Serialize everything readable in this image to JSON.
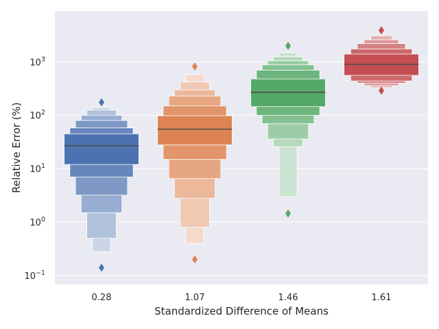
{
  "chart_data": {
    "type": "boxenplot",
    "xlabel": "Standardized Difference of Means",
    "ylabel": "Relative Error (%)",
    "yscale": "log",
    "ylim": [
      0.068,
      9000
    ],
    "grid": true,
    "categories": [
      "0.28",
      "1.07",
      "1.46",
      "1.61"
    ],
    "yticks": [
      {
        "value": 0.1,
        "base": "10",
        "exp": "−1"
      },
      {
        "value": 1,
        "base": "10",
        "exp": "0"
      },
      {
        "value": 10,
        "base": "10",
        "exp": "1"
      },
      {
        "value": 100,
        "base": "10",
        "exp": "2"
      },
      {
        "value": 1000,
        "base": "10",
        "exp": "3"
      }
    ],
    "series": [
      {
        "category": "0.28",
        "color": "#4c72b0",
        "median": 27,
        "boxes": [
          {
            "low": 12,
            "high": 45
          },
          {
            "low": 7,
            "high": 58
          },
          {
            "low": 3.2,
            "high": 80
          },
          {
            "low": 1.5,
            "high": 100
          },
          {
            "low": 0.5,
            "high": 125
          },
          {
            "low": 0.28,
            "high": 140
          }
        ],
        "outliers": [
          175,
          0.14
        ]
      },
      {
        "category": "1.07",
        "color": "#dd8452",
        "median": 55,
        "boxes": [
          {
            "low": 28,
            "high": 98
          },
          {
            "low": 15,
            "high": 150
          },
          {
            "low": 6.5,
            "high": 230
          },
          {
            "low": 2.8,
            "high": 300
          },
          {
            "low": 0.8,
            "high": 420
          },
          {
            "low": 0.4,
            "high": 580
          }
        ],
        "outliers": [
          820,
          0.2
        ]
      },
      {
        "category": "1.46",
        "color": "#55a868",
        "median": 270,
        "boxes": [
          {
            "low": 145,
            "high": 480
          },
          {
            "low": 100,
            "high": 700
          },
          {
            "low": 70,
            "high": 880
          },
          {
            "low": 36,
            "high": 1050
          },
          {
            "low": 26,
            "high": 1250
          },
          {
            "low": 3,
            "high": 1500
          }
        ],
        "outliers": [
          2000,
          1.45
        ]
      },
      {
        "category": "1.61",
        "color": "#c44e52",
        "median": 900,
        "boxes": [
          {
            "low": 560,
            "high": 1400
          },
          {
            "low": 440,
            "high": 1750
          },
          {
            "low": 400,
            "high": 2200
          },
          {
            "low": 360,
            "high": 2600
          },
          {
            "low": 330,
            "high": 3100
          }
        ],
        "outliers": [
          3900,
          290
        ]
      }
    ]
  }
}
